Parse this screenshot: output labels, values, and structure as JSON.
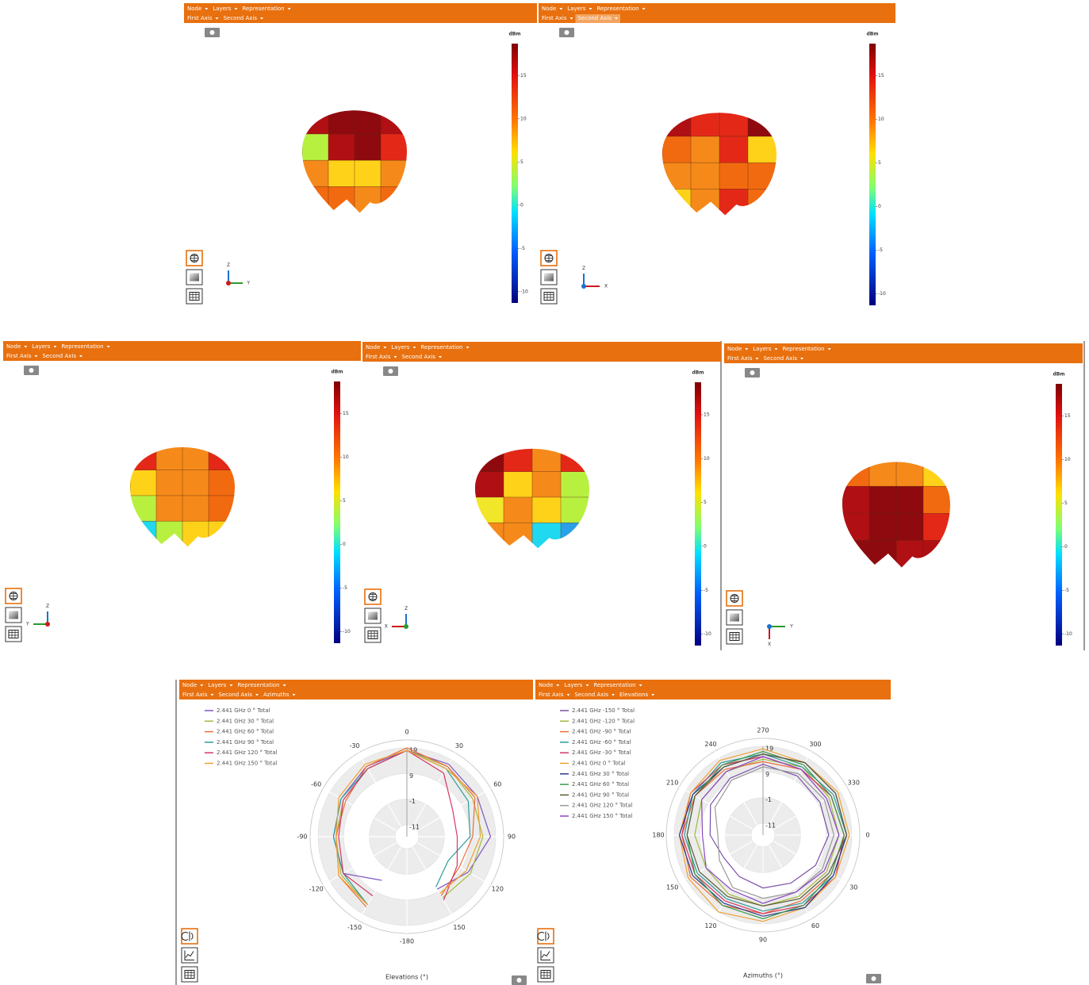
{
  "menus": {
    "node": "Node",
    "layers": "Layers",
    "representation": "Representation",
    "first_axis": "First Axis",
    "second_axis": "Second Axis",
    "azimuths": "Azimuths",
    "elevations": "Elevations"
  },
  "colorbar": {
    "unit": "dBm",
    "clim": [
      -11.3,
      18.7
    ],
    "ticks": [
      15,
      10,
      5,
      0,
      -5,
      -10
    ]
  },
  "axis_letters": {
    "x": "X",
    "y": "Y",
    "z": "Z"
  },
  "polar_charts": [
    {
      "type": "polar",
      "xlabel": "Elevations (°)",
      "thetaticks": [
        0,
        30,
        60,
        90,
        120,
        150,
        -180,
        -150,
        -120,
        -90,
        -60,
        -30
      ],
      "rlim": [
        -11,
        19
      ],
      "rticks": [
        -11,
        -1,
        9,
        19
      ],
      "x": [
        -150,
        -120,
        -90,
        -60,
        -30,
        0,
        30,
        60,
        90,
        120,
        150
      ],
      "series": [
        {
          "name": "2.441 GHz 0 ° Total",
          "color": "#7e57c2",
          "values": [
            4,
            13,
            13,
            14,
            16,
            18,
            17,
            16,
            17,
            12,
            8
          ]
        },
        {
          "name": "2.441 GHz 30 ° Total",
          "color": "#a4b83c",
          "values": [
            15,
            14,
            12,
            13,
            15,
            18,
            16,
            14,
            14,
            13,
            12
          ]
        },
        {
          "name": "2.441 GHz 60 ° Total",
          "color": "#ee6c3a",
          "values": [
            16,
            15,
            12,
            12,
            16,
            19,
            16,
            15,
            10,
            8,
            11
          ]
        },
        {
          "name": "2.441 GHz 90 ° Total",
          "color": "#2e9c9c",
          "values": [
            15,
            13,
            13,
            14,
            15,
            18,
            15,
            12,
            9,
            3,
            7
          ]
        },
        {
          "name": "2.441 GHz 120 ° Total",
          "color": "#d63864",
          "values": [
            11,
            13,
            11,
            13,
            15,
            18,
            13,
            5,
            4,
            7,
            13
          ]
        },
        {
          "name": "2.441 GHz 150 ° Total",
          "color": "#f0a030",
          "values": [
            15,
            15,
            12,
            15,
            17,
            18,
            15,
            16,
            13,
            11,
            10
          ]
        }
      ]
    },
    {
      "type": "polar",
      "xlabel": "Azimuths (°)",
      "thetaticks": [
        0,
        30,
        60,
        90,
        120,
        150,
        180,
        210,
        240,
        270,
        300,
        330
      ],
      "rlim": [
        -11,
        19
      ],
      "rticks": [
        -11,
        -1,
        9,
        19
      ],
      "x": [
        0,
        30,
        60,
        90,
        120,
        150,
        180,
        210,
        240,
        270,
        300,
        330
      ],
      "series": [
        {
          "name": "2.441 GHz -150 ° Total",
          "color": "#7b4fa8",
          "values": [
            10,
            8,
            6,
            5,
            3,
            2,
            5,
            8,
            10,
            12,
            11,
            10
          ]
        },
        {
          "name": "2.441 GHz -120 ° Total",
          "color": "#a4b83c",
          "values": [
            14,
            13,
            12,
            12,
            11,
            10,
            11,
            12,
            13,
            14,
            15,
            14
          ]
        },
        {
          "name": "2.441 GHz -90 ° Total",
          "color": "#ee6c3a",
          "values": [
            16,
            15,
            14,
            15,
            16,
            17,
            16,
            15,
            14,
            13,
            14,
            15
          ]
        },
        {
          "name": "2.441 GHz -60 ° Total",
          "color": "#2e9c9c",
          "values": [
            17,
            16,
            15,
            14,
            13,
            14,
            15,
            16,
            17,
            16,
            15,
            16
          ]
        },
        {
          "name": "2.441 GHz -30 ° Total",
          "color": "#d63864",
          "values": [
            16,
            17,
            16,
            15,
            14,
            15,
            16,
            17,
            16,
            15,
            14,
            15
          ]
        },
        {
          "name": "2.441 GHz 0 ° Total",
          "color": "#f0a030",
          "values": [
            18,
            17,
            17,
            18,
            19,
            18,
            17,
            17,
            18,
            18,
            17,
            18
          ]
        },
        {
          "name": "2.441 GHz 30 ° Total",
          "color": "#2b3a8c",
          "values": [
            17,
            16,
            17,
            16,
            15,
            16,
            17,
            16,
            15,
            16,
            17,
            17
          ]
        },
        {
          "name": "2.441 GHz 60 ° Total",
          "color": "#3c9a4a",
          "values": [
            16,
            15,
            16,
            17,
            16,
            15,
            14,
            15,
            16,
            17,
            16,
            15
          ]
        },
        {
          "name": "2.441 GHz 90 ° Total",
          "color": "#5e5a3a",
          "values": [
            17,
            14,
            13,
            12,
            12,
            13,
            14,
            15,
            15,
            16,
            17,
            17
          ]
        },
        {
          "name": "2.441 GHz 120 ° Total",
          "color": "#9a9a9a",
          "values": [
            12,
            11,
            10,
            9,
            8,
            4,
            2,
            6,
            9,
            11,
            12,
            12
          ]
        },
        {
          "name": "2.441 GHz 150 ° Total",
          "color": "#8a46c0",
          "values": [
            14,
            12,
            10,
            11,
            9,
            10,
            8,
            12,
            13,
            15,
            14,
            13
          ]
        }
      ]
    }
  ]
}
